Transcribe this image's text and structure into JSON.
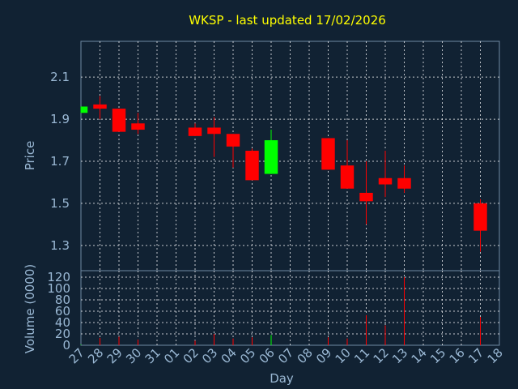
{
  "chart_data": {
    "type": "candlestick",
    "title": "WKSP - last updated 17/02/2026",
    "xlabel": "Day",
    "ylabel_price": "Price",
    "ylabel_volume": "Volume (0000)",
    "x_ticks": [
      "27",
      "28",
      "29",
      "30",
      "31",
      "01",
      "02",
      "03",
      "04",
      "05",
      "06",
      "07",
      "08",
      "09",
      "10",
      "11",
      "12",
      "13",
      "14",
      "15",
      "16",
      "17",
      "18"
    ],
    "price_ylim": [
      1.18,
      2.27
    ],
    "price_ticks": [
      "2.1",
      "1.9",
      "1.7",
      "1.5",
      "1.3"
    ],
    "volume_ylim": [
      0,
      120
    ],
    "volume_ticks": [
      "0",
      "20",
      "40",
      "60",
      "80",
      "100",
      "120"
    ],
    "grid": true,
    "up_color": "#00ff00",
    "down_color": "#ff0000",
    "candles": [
      {
        "x": "27",
        "open": 1.93,
        "close": 1.96,
        "high": 1.96,
        "low": 1.93
      },
      {
        "x": "28",
        "open": 1.97,
        "close": 1.95,
        "high": 2.01,
        "low": 1.9
      },
      {
        "x": "29",
        "open": 1.95,
        "close": 1.84,
        "high": 1.95,
        "low": 1.84
      },
      {
        "x": "30",
        "open": 1.88,
        "close": 1.85,
        "high": 1.93,
        "low": 1.83
      },
      {
        "x": "02",
        "open": 1.86,
        "close": 1.82,
        "high": 1.88,
        "low": 1.82
      },
      {
        "x": "03",
        "open": 1.86,
        "close": 1.83,
        "high": 1.91,
        "low": 1.72
      },
      {
        "x": "04",
        "open": 1.83,
        "close": 1.77,
        "high": 1.83,
        "low": 1.67
      },
      {
        "x": "05",
        "open": 1.75,
        "close": 1.61,
        "high": 1.76,
        "low": 1.61
      },
      {
        "x": "06",
        "open": 1.64,
        "close": 1.8,
        "high": 1.85,
        "low": 1.64
      },
      {
        "x": "09",
        "open": 1.81,
        "close": 1.66,
        "high": 1.81,
        "low": 1.66
      },
      {
        "x": "10",
        "open": 1.68,
        "close": 1.57,
        "high": 1.8,
        "low": 1.57
      },
      {
        "x": "11",
        "open": 1.55,
        "close": 1.51,
        "high": 1.7,
        "low": 1.4
      },
      {
        "x": "12",
        "open": 1.62,
        "close": 1.59,
        "high": 1.75,
        "low": 1.53
      },
      {
        "x": "13",
        "open": 1.62,
        "close": 1.57,
        "high": 1.68,
        "low": 1.55
      },
      {
        "x": "17",
        "open": 1.5,
        "close": 1.37,
        "high": 1.52,
        "low": 1.27
      }
    ],
    "volume": [
      {
        "x": "27",
        "value": 1,
        "direction": "up"
      },
      {
        "x": "28",
        "value": 13,
        "direction": "down"
      },
      {
        "x": "29",
        "value": 15,
        "direction": "down"
      },
      {
        "x": "30",
        "value": 10,
        "direction": "down"
      },
      {
        "x": "02",
        "value": 8,
        "direction": "down"
      },
      {
        "x": "03",
        "value": 20,
        "direction": "down"
      },
      {
        "x": "04",
        "value": 12,
        "direction": "down"
      },
      {
        "x": "05",
        "value": 14,
        "direction": "down"
      },
      {
        "x": "06",
        "value": 18,
        "direction": "up"
      },
      {
        "x": "09",
        "value": 14,
        "direction": "down"
      },
      {
        "x": "10",
        "value": 12,
        "direction": "down"
      },
      {
        "x": "11",
        "value": 53,
        "direction": "down"
      },
      {
        "x": "12",
        "value": 35,
        "direction": "down"
      },
      {
        "x": "13",
        "value": 120,
        "direction": "down"
      },
      {
        "x": "17",
        "value": 50,
        "direction": "down"
      }
    ]
  }
}
